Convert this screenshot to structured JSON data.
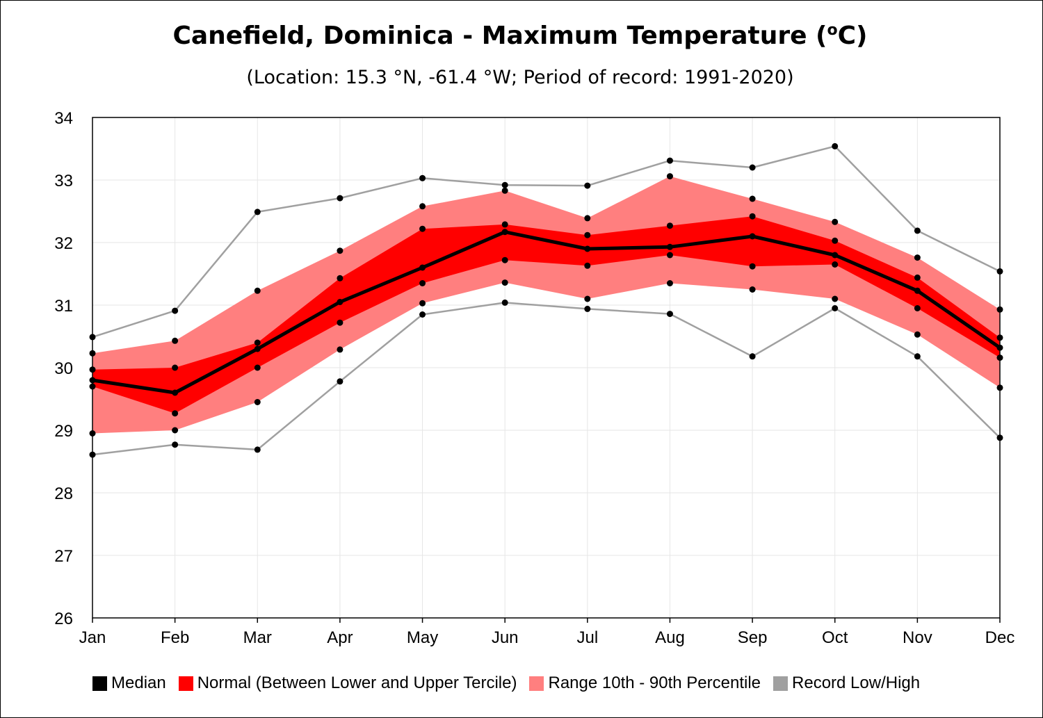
{
  "title": {
    "main": "Canefield, Dominica - Maximum Temperature (",
    "sup": "o",
    "end": "C)"
  },
  "subtitle": "(Location: 15.3 °N, -61.4 °W; Period of record: 1991-2020)",
  "colors": {
    "median": "#000000",
    "normal": "#ff0000",
    "range": "#ff7f7f",
    "record": "#a0a0a0",
    "grid": "#e6e6e6"
  },
  "legend": [
    {
      "key": "median",
      "label": "Median"
    },
    {
      "key": "normal",
      "label": "Normal (Between Lower and Upper Tercile)"
    },
    {
      "key": "range",
      "label": "Range 10th - 90th Percentile"
    },
    {
      "key": "record",
      "label": "Record Low/High"
    }
  ],
  "chart_data": {
    "type": "line",
    "title": "Canefield, Dominica - Maximum Temperature (oC)",
    "subtitle": "(Location: 15.3 °N, -61.4 °W; Period of record: 1991-2020)",
    "xlabel": "",
    "ylabel": "",
    "categories": [
      "Jan",
      "Feb",
      "Mar",
      "Apr",
      "May",
      "Jun",
      "Jul",
      "Aug",
      "Sep",
      "Oct",
      "Nov",
      "Dec"
    ],
    "ylim": [
      26,
      34
    ],
    "yticks": [
      26,
      27,
      28,
      29,
      30,
      31,
      32,
      33,
      34
    ],
    "grid": true,
    "legend_position": "bottom",
    "series": [
      {
        "name": "Median",
        "values": [
          29.8,
          29.6,
          30.3,
          31.05,
          31.6,
          32.17,
          31.9,
          31.93,
          32.1,
          31.8,
          31.23,
          30.32
        ]
      },
      {
        "name": "Lower Tercile",
        "values": [
          29.7,
          29.27,
          30.0,
          30.72,
          31.35,
          31.72,
          31.63,
          31.8,
          31.62,
          31.65,
          30.95,
          30.16
        ]
      },
      {
        "name": "Upper Tercile",
        "values": [
          29.97,
          30.0,
          30.4,
          31.43,
          32.22,
          32.29,
          32.12,
          32.27,
          32.42,
          32.03,
          31.44,
          30.48
        ]
      },
      {
        "name": "10th Percentile",
        "values": [
          28.95,
          29.0,
          29.45,
          30.29,
          31.03,
          31.36,
          31.1,
          31.35,
          31.25,
          31.1,
          30.53,
          29.68
        ]
      },
      {
        "name": "90th Percentile",
        "values": [
          30.23,
          30.43,
          31.23,
          31.87,
          32.58,
          32.83,
          32.39,
          33.06,
          32.7,
          32.33,
          31.76,
          30.93
        ]
      },
      {
        "name": "Record Low",
        "values": [
          28.61,
          28.77,
          28.69,
          29.78,
          30.85,
          31.04,
          30.94,
          30.86,
          30.18,
          30.95,
          30.18,
          28.88
        ]
      },
      {
        "name": "Record High",
        "values": [
          30.49,
          30.91,
          32.49,
          32.71,
          33.03,
          32.92,
          32.91,
          33.31,
          33.2,
          33.54,
          32.19,
          31.54
        ]
      }
    ]
  }
}
